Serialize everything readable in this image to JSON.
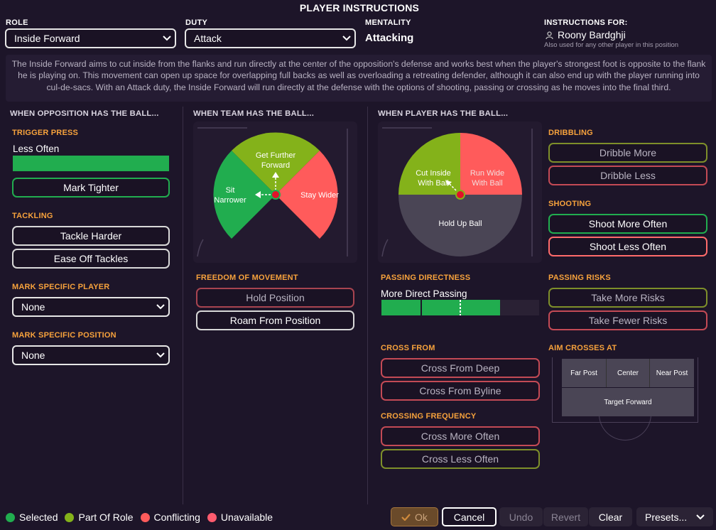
{
  "title": "PLAYER INSTRUCTIONS",
  "role": {
    "label": "ROLE",
    "value": "Inside Forward"
  },
  "duty": {
    "label": "DUTY",
    "value": "Attack"
  },
  "mentality": {
    "label": "MENTALITY",
    "value": "Attacking"
  },
  "instructions_for": {
    "label": "INSTRUCTIONS FOR:",
    "player": "Roony Bardghji",
    "note": "Also used for any other player in this position"
  },
  "description": "The Inside Forward aims to cut inside from the flanks and run directly at the center of the opposition's defense and works best when the player's strongest foot is opposite to the flank he is playing on. This movement can open up space for overlapping full backs as well as overloading a retreating defender, although it can also end up with the player running into cul-de-sacs. With an Attack duty, the Inside Forward will run directly at the defense with the options of shooting, passing or crossing as he moves into the final third.",
  "opposition": {
    "header": "WHEN OPPOSITION HAS THE BALL...",
    "trigger_press": {
      "label": "TRIGGER PRESS",
      "value_label": "Less Often",
      "level": 1.0
    },
    "mark_tighter": "Mark Tighter",
    "tackling": {
      "label": "TACKLING",
      "harder": "Tackle Harder",
      "ease": "Ease Off Tackles"
    },
    "mark_player": {
      "label": "MARK SPECIFIC PLAYER",
      "value": "None"
    },
    "mark_position": {
      "label": "MARK SPECIFIC POSITION",
      "value": "None"
    }
  },
  "team": {
    "header": "WHEN TEAM HAS THE BALL...",
    "wheel": {
      "forward": [
        "Get Further",
        "Forward"
      ],
      "narrower": [
        "Sit",
        "Narrower"
      ],
      "wider": "Stay Wider"
    },
    "freedom": {
      "label": "FREEDOM OF MOVEMENT",
      "hold": "Hold Position",
      "roam": "Roam From Position"
    }
  },
  "player": {
    "header": "WHEN PLAYER HAS THE BALL...",
    "wheel": {
      "cut_inside": [
        "Cut Inside",
        "With Ball"
      ],
      "run_wide": [
        "Run Wide",
        "With Ball"
      ],
      "hold_up": "Hold Up Ball"
    },
    "passing_directness": {
      "label": "PASSING DIRECTNESS",
      "value_label": "More Direct Passing",
      "level": 0.75
    },
    "cross_from": {
      "label": "CROSS FROM",
      "deep": "Cross From Deep",
      "byline": "Cross From Byline"
    },
    "crossing_frequency": {
      "label": "CROSSING FREQUENCY",
      "more": "Cross More Often",
      "less": "Cross Less Often"
    },
    "dribbling": {
      "label": "DRIBBLING",
      "more": "Dribble More",
      "less": "Dribble Less"
    },
    "shooting": {
      "label": "SHOOTING",
      "more": "Shoot More Often",
      "less": "Shoot Less Often"
    },
    "passing_risks": {
      "label": "PASSING RISKS",
      "more": "Take More Risks",
      "fewer": "Take Fewer Risks"
    },
    "aim_crosses": {
      "label": "AIM CROSSES AT",
      "far": "Far Post",
      "center": "Center",
      "near": "Near Post",
      "target": "Target Forward"
    }
  },
  "legend": {
    "selected": "Selected",
    "part": "Part Of Role",
    "conflicting": "Conflicting",
    "unavailable": "Unavailable"
  },
  "buttons": {
    "ok": "Ok",
    "cancel": "Cancel",
    "undo": "Undo",
    "revert": "Revert",
    "clear": "Clear",
    "presets": "Presets..."
  },
  "colors": {
    "selected": "#21ad4f",
    "part": "#84b21a",
    "conflicting": "#ff5b5b",
    "unavailable": "#ff5b6e",
    "accent": "#f7a23c"
  }
}
